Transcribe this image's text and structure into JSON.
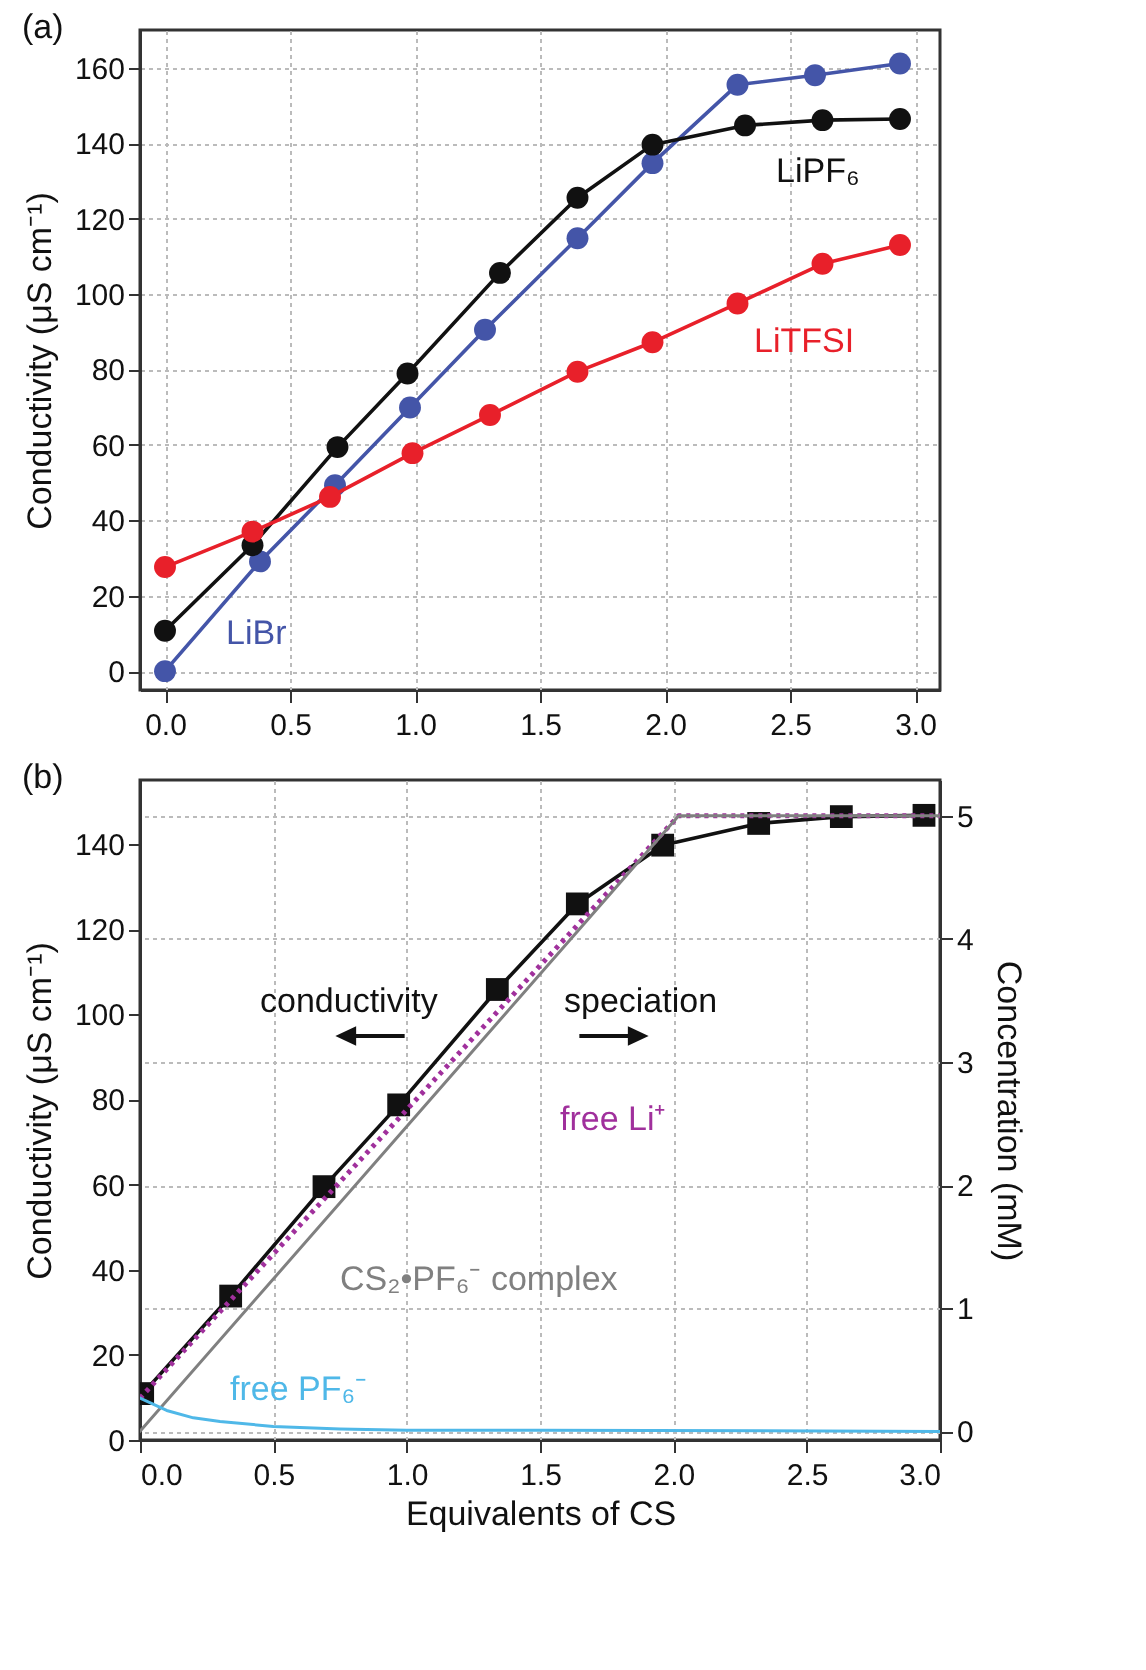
{
  "chart_data": [
    {
      "type": "line",
      "title": "(a)",
      "ylabel": "Conductivity (μS cm⁻¹)",
      "xlim": [
        -0.1,
        3.1
      ],
      "ylim": [
        -5,
        170
      ],
      "xticks": [
        {
          "value": 0,
          "label": "0.0"
        },
        0.5,
        {
          "value": 1,
          "label": "1.0"
        },
        1.5,
        {
          "value": 2,
          "label": "2.0"
        },
        2.5,
        {
          "value": 3,
          "label": "3.0"
        }
      ],
      "yticks": [
        0,
        20,
        40,
        60,
        80,
        100,
        120,
        140,
        160
      ],
      "grid": true,
      "marker": "circle",
      "series": [
        {
          "name": "LiBr",
          "color": "#4455a8",
          "x": [
            0,
            0.38,
            0.68,
            0.98,
            1.28,
            1.65,
            1.95,
            2.29,
            2.6,
            2.94
          ],
          "values": [
            0,
            29.1,
            49.3,
            69.9,
            90.5,
            114.8,
            134.7,
            155.5,
            158,
            161.1
          ]
        },
        {
          "name": "LiPF₆",
          "color": "#111111",
          "x": [
            0,
            0.35,
            0.69,
            0.97,
            1.34,
            1.65,
            1.95,
            2.32,
            2.63,
            2.94
          ],
          "values": [
            10.7,
            33.4,
            59.4,
            78.9,
            105.6,
            125.5,
            139.6,
            144.7,
            146.1,
            146.4
          ]
        },
        {
          "name": "LiTFSI",
          "color": "#e8202a",
          "x": [
            0,
            0.35,
            0.66,
            0.99,
            1.3,
            1.65,
            1.95,
            2.29,
            2.63,
            2.94
          ],
          "values": [
            27.6,
            37,
            46.2,
            57.8,
            67.9,
            79.4,
            87.2,
            97.5,
            108,
            113
          ]
        }
      ]
    },
    {
      "type": "line",
      "title": "(b)",
      "xlabel": "Equivalents of CS",
      "ylabel": "Conductivity (μS cm⁻¹)",
      "y2label": "Concentration (mM)",
      "xlim": [
        0,
        3
      ],
      "ylim": [
        0,
        155
      ],
      "y2lim": [
        -0.07,
        5.29
      ],
      "xticks": [
        {
          "value": 0,
          "label": "0.0"
        },
        0.5,
        {
          "value": 1,
          "label": "1.0"
        },
        1.5,
        {
          "value": 2,
          "label": "2.0"
        },
        2.5,
        {
          "value": 3,
          "label": "3.0"
        }
      ],
      "yticks": [
        0,
        20,
        40,
        60,
        80,
        100,
        120,
        140
      ],
      "y2ticks": [
        0,
        1,
        2,
        3,
        4,
        5
      ],
      "grid": true,
      "annotations": [
        "conductivity",
        "speciation"
      ],
      "series": [
        {
          "color": "#111111",
          "marker": "square",
          "x": [
            0.01,
            0.34,
            0.69,
            0.97,
            1.34,
            1.64,
            1.96,
            2.32,
            2.63,
            2.94
          ],
          "values": [
            10.9,
            33.8,
            59.5,
            78.7,
            105.8,
            125.9,
            139.7,
            144.8,
            146.4,
            146.7
          ]
        },
        {
          "name": "free Li⁺",
          "color": "#a0309c",
          "axis": "y2",
          "marker": "none",
          "line_style": "dotted",
          "x": [
            0,
            2.02,
            3
          ],
          "values": [
            0.27,
            5,
            5
          ]
        },
        {
          "name": "CS₂•PF₆⁻ complex",
          "color": "#808080",
          "axis": "y2",
          "marker": "none",
          "x": [
            0,
            2.02,
            3
          ],
          "values": [
            0,
            5,
            5
          ]
        },
        {
          "name": "free PF₆⁻",
          "color": "#4fb8e8",
          "axis": "y2",
          "marker": "none",
          "x": [
            0,
            0.1,
            0.2,
            0.3,
            0.5,
            0.75,
            1,
            1.5,
            3
          ],
          "values": [
            0.27,
            0.17,
            0.11,
            0.08,
            0.04,
            0.02,
            0.01,
            0.01,
            0
          ]
        }
      ]
    }
  ]
}
